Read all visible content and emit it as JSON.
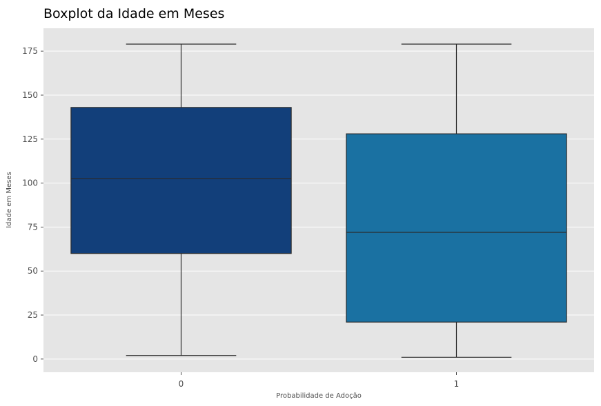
{
  "chart_data": {
    "type": "boxplot",
    "title": "Boxplot da Idade em Meses",
    "xlabel": "Probabilidade de Adoção",
    "ylabel": "Idade em Meses",
    "categories": [
      "0",
      "1"
    ],
    "boxes": [
      {
        "category": "0",
        "min": 2,
        "q1": 60,
        "median": 102.5,
        "q3": 143,
        "max": 179,
        "color": "#123f7a"
      },
      {
        "category": "1",
        "min": 1,
        "q1": 21,
        "median": 72,
        "q3": 128,
        "max": 179,
        "color": "#1a71a2"
      }
    ],
    "ylim": [
      -7.5,
      188
    ],
    "yticks": [
      0,
      25,
      50,
      75,
      100,
      125,
      150,
      175
    ],
    "grid": true,
    "background": "#e5e5e5",
    "gridcolor": "#ffffff",
    "edgecolor": "#2b2b2b"
  }
}
